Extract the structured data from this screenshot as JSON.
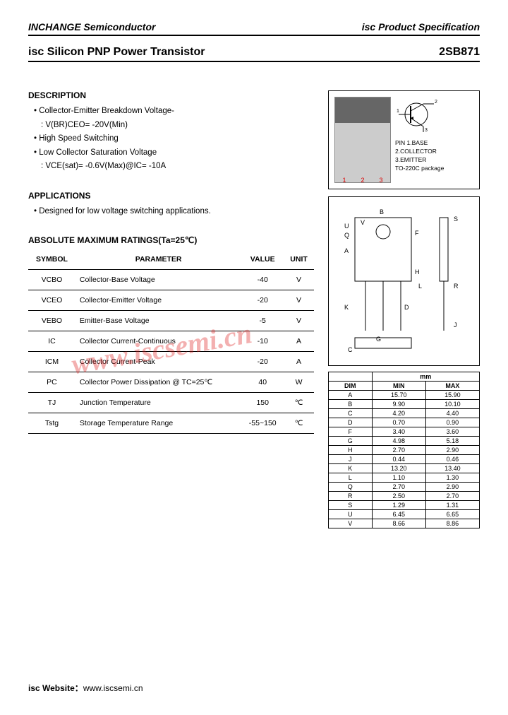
{
  "header": {
    "company": "INCHANGE Semiconductor",
    "doc_type": "isc Product Specification"
  },
  "title": {
    "product": "isc Silicon PNP Power Transistor",
    "part_number": "2SB871"
  },
  "description": {
    "heading": "DESCRIPTION",
    "items": [
      "Collector-Emitter Breakdown Voltage-",
      ": V(BR)CEO= -20V(Min)",
      "High Speed Switching",
      "Low Collector Saturation Voltage",
      ": VCE(sat)= -0.6V(Max)@IC= -10A"
    ],
    "indent_flags": [
      false,
      true,
      false,
      false,
      true
    ]
  },
  "applications": {
    "heading": "APPLICATIONS",
    "items": [
      "Designed for low voltage switching applications."
    ]
  },
  "ratings": {
    "heading": "ABSOLUTE MAXIMUM RATINGS(Ta=25℃)",
    "columns": [
      "SYMBOL",
      "PARAMETER",
      "VALUE",
      "UNIT"
    ],
    "rows": [
      [
        "VCBO",
        "Collector-Base Voltage",
        "-40",
        "V"
      ],
      [
        "VCEO",
        "Collector-Emitter Voltage",
        "-20",
        "V"
      ],
      [
        "VEBO",
        "Emitter-Base Voltage",
        "-5",
        "V"
      ],
      [
        "IC",
        "Collector Current-Continuous",
        "-10",
        "A"
      ],
      [
        "ICM",
        "Collector Current-Peak",
        "-20",
        "A"
      ],
      [
        "PC",
        "Collector Power Dissipation @ TC=25℃",
        "40",
        "W"
      ],
      [
        "TJ",
        "Junction Temperature",
        "150",
        "℃"
      ],
      [
        "Tstg",
        "Storage Temperature Range",
        "-55~150",
        "℃"
      ]
    ]
  },
  "package": {
    "leads": [
      "1",
      "2",
      "3"
    ],
    "pin_heading": "PIN",
    "pins": [
      "1.BASE",
      "2.COLLECTOR",
      "3.EMITTER"
    ],
    "pkg_name": "TO-220C package",
    "sym_labels": {
      "base": "1",
      "collector": "2",
      "emitter": "3"
    }
  },
  "outline_placeholder": "[ package outline drawing ]",
  "dimensions": {
    "unit_label": "mm",
    "columns": [
      "DIM",
      "MIN",
      "MAX"
    ],
    "rows": [
      [
        "A",
        "15.70",
        "15.90"
      ],
      [
        "B",
        "9.90",
        "10.10"
      ],
      [
        "C",
        "4.20",
        "4.40"
      ],
      [
        "D",
        "0.70",
        "0.90"
      ],
      [
        "F",
        "3.40",
        "3.60"
      ],
      [
        "G",
        "4.98",
        "5.18"
      ],
      [
        "H",
        "2.70",
        "2.90"
      ],
      [
        "J",
        "0.44",
        "0.46"
      ],
      [
        "K",
        "13.20",
        "13.40"
      ],
      [
        "L",
        "1.10",
        "1.30"
      ],
      [
        "Q",
        "2.70",
        "2.90"
      ],
      [
        "R",
        "2.50",
        "2.70"
      ],
      [
        "S",
        "1.29",
        "1.31"
      ],
      [
        "U",
        "6.45",
        "6.65"
      ],
      [
        "V",
        "8.66",
        "8.86"
      ]
    ]
  },
  "watermark": "www.iscsemi.cn",
  "footer": {
    "label": "isc Website：",
    "url": "www.iscsemi.cn"
  }
}
